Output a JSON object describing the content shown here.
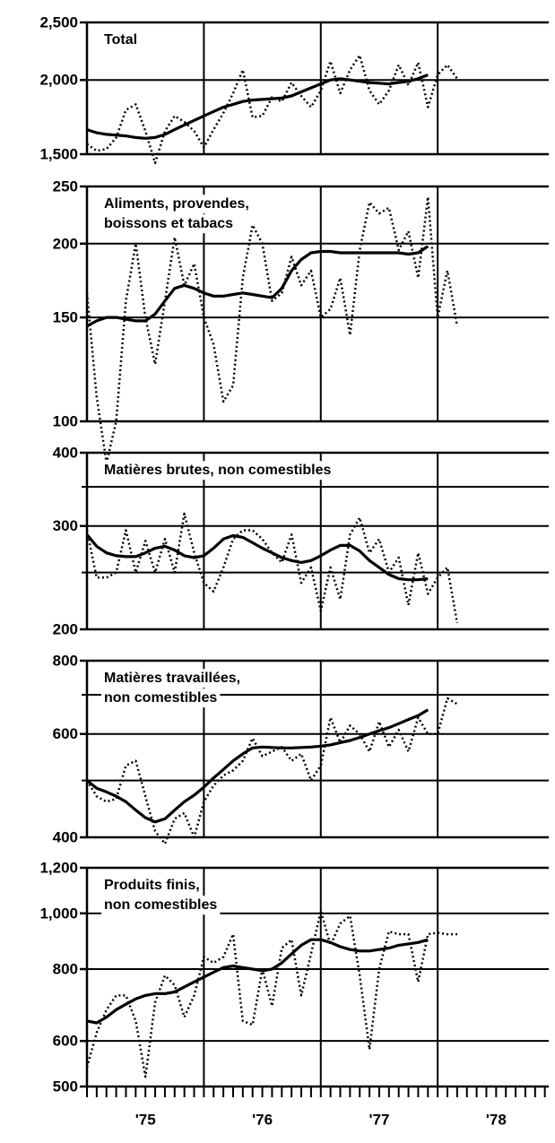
{
  "chart_data": [
    {
      "type": "line",
      "title": [
        "Total"
      ],
      "ylog": true,
      "ylim": [
        1500,
        2500
      ],
      "yticks": [
        {
          "value": 1500,
          "label": "1,500"
        },
        {
          "value": 2000,
          "label": "2,000"
        },
        {
          "value": 2500,
          "label": "2,500"
        }
      ],
      "ygrid": [
        2000
      ],
      "xlim": [
        1975,
        1978.95
      ],
      "xgrid": [
        1976,
        1977,
        1978
      ],
      "x": [
        1975,
        1975.083,
        1975.167,
        1975.25,
        1975.333,
        1975.417,
        1975.5,
        1975.583,
        1975.667,
        1975.75,
        1975.833,
        1975.917,
        1976,
        1976.083,
        1976.167,
        1976.25,
        1976.333,
        1976.417,
        1976.5,
        1976.583,
        1976.667,
        1976.75,
        1976.833,
        1976.917,
        1977,
        1977.083,
        1977.167,
        1977.25,
        1977.333,
        1977.417,
        1977.5,
        1977.583,
        1977.667,
        1977.75,
        1977.833,
        1977.917,
        1978,
        1978.083,
        1978.167
      ],
      "series": [
        {
          "style": "dotted",
          "color": "#000000",
          "values": [
            1560,
            1520,
            1530,
            1600,
            1780,
            1820,
            1640,
            1450,
            1640,
            1740,
            1700,
            1640,
            1540,
            1650,
            1760,
            1900,
            2080,
            1730,
            1740,
            1870,
            1840,
            1980,
            1880,
            1800,
            1920,
            2150,
            1900,
            2080,
            2200,
            1920,
            1820,
            1920,
            2120,
            1960,
            2140,
            1800,
            2040,
            2120,
            2010
          ]
        },
        {
          "style": "solid",
          "color": "#000000",
          "values": [
            1650,
            1630,
            1620,
            1615,
            1610,
            1600,
            1595,
            1600,
            1620,
            1650,
            1680,
            1710,
            1740,
            1770,
            1800,
            1820,
            1840,
            1850,
            1855,
            1860,
            1865,
            1880,
            1910,
            1940,
            1970,
            2000,
            2010,
            2000,
            1990,
            1980,
            1975,
            1970,
            1980,
            1990,
            2010,
            2040,
            null,
            null,
            null
          ]
        }
      ]
    },
    {
      "type": "line",
      "title": [
        "Aliments, provendes,",
        "boissons et tabacs"
      ],
      "ylog": true,
      "ylim": [
        100,
        250
      ],
      "yticks": [
        100,
        150,
        200,
        250
      ],
      "ygrid": [
        150,
        200
      ],
      "xlim": [
        1975,
        1978.95
      ],
      "xgrid": [
        1976,
        1977,
        1978
      ],
      "x": [
        1975,
        1975.083,
        1975.167,
        1975.25,
        1975.333,
        1975.417,
        1975.5,
        1975.583,
        1975.667,
        1975.75,
        1975.833,
        1975.917,
        1976,
        1976.083,
        1976.167,
        1976.25,
        1976.333,
        1976.417,
        1976.5,
        1976.583,
        1976.667,
        1976.75,
        1976.833,
        1976.917,
        1977,
        1977.083,
        1977.167,
        1977.25,
        1977.333,
        1977.417,
        1977.5,
        1977.583,
        1977.667,
        1977.75,
        1977.833,
        1977.917,
        1978,
        1978.083,
        1978.167
      ],
      "series": [
        {
          "style": "dotted",
          "color": "#000000",
          "values": [
            165,
            110,
            85,
            100,
            160,
            200,
            150,
            125,
            160,
            205,
            170,
            185,
            150,
            135,
            108,
            115,
            175,
            215,
            200,
            160,
            165,
            190,
            170,
            180,
            150,
            155,
            175,
            140,
            195,
            235,
            225,
            230,
            195,
            210,
            175,
            240,
            150,
            180,
            145
          ]
        },
        {
          "style": "solid",
          "color": "#000000",
          "values": [
            145,
            148,
            150,
            150,
            149,
            148,
            148,
            152,
            160,
            168,
            170,
            168,
            165,
            163,
            163,
            164,
            165,
            164,
            163,
            162,
            168,
            180,
            188,
            193,
            194,
            194,
            193,
            193,
            193,
            193,
            193,
            193,
            193,
            192,
            193,
            198,
            null,
            null,
            null
          ]
        }
      ]
    },
    {
      "type": "line",
      "title": [
        "Matières brutes, non comestibles"
      ],
      "ylog": true,
      "ylim": [
        200,
        400
      ],
      "yticks": [
        200,
        300,
        400
      ],
      "ygrid": [
        250,
        300,
        350
      ],
      "xlim": [
        1975,
        1978.95
      ],
      "xgrid": [
        1976,
        1977,
        1978
      ],
      "x": [
        1975,
        1975.083,
        1975.167,
        1975.25,
        1975.333,
        1975.417,
        1975.5,
        1975.583,
        1975.667,
        1975.75,
        1975.833,
        1975.917,
        1976,
        1976.083,
        1976.167,
        1976.25,
        1976.333,
        1976.417,
        1976.5,
        1976.583,
        1976.667,
        1976.75,
        1976.833,
        1976.917,
        1977,
        1977.083,
        1977.167,
        1977.25,
        1977.333,
        1977.417,
        1977.5,
        1977.583,
        1977.667,
        1977.75,
        1977.833,
        1977.917,
        1978,
        1978.083,
        1978.167
      ],
      "series": [
        {
          "style": "dotted",
          "color": "#000000",
          "values": [
            295,
            245,
            245,
            250,
            295,
            250,
            283,
            250,
            285,
            250,
            315,
            270,
            240,
            232,
            255,
            285,
            295,
            295,
            285,
            270,
            260,
            290,
            240,
            255,
            215,
            255,
            225,
            290,
            310,
            270,
            285,
            250,
            265,
            220,
            270,
            230,
            245,
            255,
            205
          ]
        },
        {
          "style": "solid",
          "color": "#000000",
          "values": [
            290,
            277,
            270,
            267,
            266,
            266,
            270,
            275,
            277,
            273,
            267,
            265,
            267,
            275,
            285,
            289,
            287,
            281,
            275,
            270,
            265,
            262,
            260,
            262,
            267,
            273,
            278,
            278,
            272,
            262,
            255,
            248,
            244,
            243,
            243,
            244,
            null,
            null,
            null
          ]
        }
      ]
    },
    {
      "type": "line",
      "title": [
        "Matières travaillées,",
        "non comestibles"
      ],
      "ylog": true,
      "ylim": [
        400,
        800
      ],
      "yticks": [
        400,
        600,
        800
      ],
      "ygrid": [
        500,
        600,
        700
      ],
      "xlim": [
        1975,
        1978.95
      ],
      "xgrid": [
        1976,
        1977,
        1978
      ],
      "x": [
        1975,
        1975.083,
        1975.167,
        1975.25,
        1975.333,
        1975.417,
        1975.5,
        1975.583,
        1975.667,
        1975.75,
        1975.833,
        1975.917,
        1976,
        1976.083,
        1976.167,
        1976.25,
        1976.333,
        1976.417,
        1976.5,
        1976.583,
        1976.667,
        1976.75,
        1976.833,
        1976.917,
        1977,
        1977.083,
        1977.167,
        1977.25,
        1977.333,
        1977.417,
        1977.5,
        1977.583,
        1977.667,
        1977.75,
        1977.833,
        1977.917,
        1978,
        1978.083,
        1978.167
      ],
      "series": [
        {
          "style": "dotted",
          "color": "#000000",
          "values": [
            500,
            470,
            460,
            465,
            530,
            540,
            470,
            410,
            390,
            430,
            440,
            400,
            460,
            490,
            510,
            520,
            540,
            590,
            550,
            560,
            570,
            540,
            555,
            500,
            530,
            640,
            580,
            620,
            600,
            560,
            630,
            570,
            610,
            560,
            640,
            600,
            600,
            690,
            675
          ]
        },
        {
          "style": "solid",
          "color": "#000000",
          "values": [
            500,
            485,
            478,
            470,
            460,
            445,
            432,
            425,
            430,
            445,
            460,
            472,
            487,
            505,
            522,
            540,
            555,
            568,
            570,
            569,
            568,
            568,
            569,
            570,
            572,
            575,
            580,
            585,
            592,
            600,
            608,
            615,
            625,
            635,
            645,
            660,
            null,
            null,
            null
          ]
        }
      ]
    },
    {
      "type": "line",
      "title": [
        "Produits finis,",
        "non comestibles"
      ],
      "ylog": true,
      "ylim": [
        500,
        1200
      ],
      "yticks": [
        500,
        600,
        800,
        {
          "value": 1000,
          "label": "1,000"
        },
        {
          "value": 1200,
          "label": "1,200"
        }
      ],
      "ygrid": [
        600,
        800,
        1000
      ],
      "xlim": [
        1975,
        1978.95
      ],
      "xgrid": [
        1976,
        1977,
        1978
      ],
      "xticks": [
        {
          "value": 1975.5,
          "label": "'75"
        },
        {
          "value": 1976.5,
          "label": "'76"
        },
        {
          "value": 1977.5,
          "label": "'77"
        },
        {
          "value": 1978.5,
          "label": "'78"
        }
      ],
      "x": [
        1975,
        1975.083,
        1975.167,
        1975.25,
        1975.333,
        1975.417,
        1975.5,
        1975.583,
        1975.667,
        1975.75,
        1975.833,
        1975.917,
        1976,
        1976.083,
        1976.167,
        1976.25,
        1976.333,
        1976.417,
        1976.5,
        1976.583,
        1976.667,
        1976.75,
        1976.833,
        1976.917,
        1977,
        1977.083,
        1977.167,
        1977.25,
        1977.333,
        1977.417,
        1977.5,
        1977.583,
        1977.667,
        1977.75,
        1977.833,
        1977.917,
        1978,
        1978.083,
        1978.167
      ],
      "series": [
        {
          "style": "dotted",
          "color": "#000000",
          "values": [
            540,
            620,
            680,
            720,
            720,
            650,
            520,
            700,
            780,
            750,
            660,
            720,
            840,
            820,
            840,
            920,
            650,
            640,
            800,
            690,
            870,
            900,
            720,
            850,
            1010,
            880,
            960,
            990,
            780,
            580,
            800,
            930,
            920,
            920,
            760,
            920,
            925,
            920,
            920
          ]
        },
        {
          "style": "solid",
          "color": "#000000",
          "values": [
            650,
            645,
            660,
            680,
            695,
            710,
            720,
            725,
            725,
            730,
            745,
            760,
            775,
            790,
            805,
            810,
            805,
            800,
            795,
            800,
            820,
            850,
            880,
            900,
            900,
            890,
            875,
            865,
            860,
            860,
            865,
            870,
            880,
            885,
            890,
            900,
            null,
            null,
            null
          ]
        }
      ]
    }
  ]
}
